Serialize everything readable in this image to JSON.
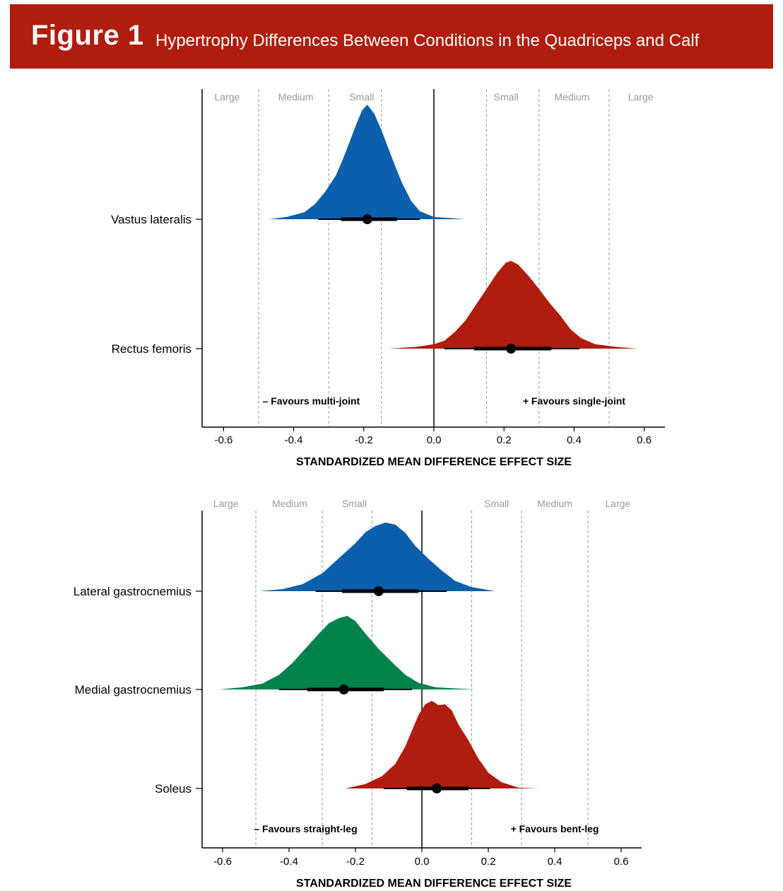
{
  "figure": {
    "label": "Figure 1",
    "title": "Hypertrophy Differences Between Conditions in the Quadriceps and Calf"
  },
  "colors": {
    "banner": "#b01c0e",
    "blue": "#0b5fad",
    "red": "#b01c0e",
    "green": "#00834a",
    "interval": "#000000",
    "threshold_line": "#9a9a9a",
    "zone_label": "#999999"
  },
  "chart_data": [
    {
      "type": "area",
      "subtype": "posterior density (half-eye) with point estimate and interval",
      "xlabel": "STANDARDIZED MEAN DIFFERENCE EFFECT SIZE",
      "xlim": [
        -0.66,
        0.66
      ],
      "xticks": [
        -0.6,
        -0.4,
        -0.2,
        0.0,
        0.2,
        0.4,
        0.6
      ],
      "xtick_labels": [
        "-0.6",
        "-0.4",
        "-0.2",
        "0.0",
        "0.2",
        "0.4",
        "0.6"
      ],
      "zero_line": 0.0,
      "thresholds": [
        -0.5,
        -0.3,
        -0.15,
        0.15,
        0.3,
        0.5
      ],
      "zone_labels": [
        {
          "text": "Large",
          "x": -0.59
        },
        {
          "text": "Medium",
          "x": -0.394
        },
        {
          "text": "Small",
          "x": -0.206
        },
        {
          "text": "Small",
          "x": 0.206
        },
        {
          "text": "Medium",
          "x": 0.394
        },
        {
          "text": "Large",
          "x": 0.59
        }
      ],
      "annotations": {
        "left": "– Favours multi-joint",
        "right": "+ Favours single-joint"
      },
      "series": [
        {
          "name": "Vastus lateralis",
          "color": "blue",
          "point": -0.19,
          "interval_66": [
            -0.265,
            -0.105
          ],
          "interval_95": [
            -0.33,
            -0.04
          ],
          "density": [
            [
              -0.47,
              0
            ],
            [
              -0.42,
              0.02
            ],
            [
              -0.37,
              0.06
            ],
            [
              -0.34,
              0.13
            ],
            [
              -0.31,
              0.24
            ],
            [
              -0.28,
              0.38
            ],
            [
              -0.26,
              0.52
            ],
            [
              -0.24,
              0.68
            ],
            [
              -0.22,
              0.84
            ],
            [
              -0.205,
              0.95
            ],
            [
              -0.19,
              1.0
            ],
            [
              -0.17,
              0.92
            ],
            [
              -0.15,
              0.78
            ],
            [
              -0.13,
              0.62
            ],
            [
              -0.11,
              0.46
            ],
            [
              -0.09,
              0.31
            ],
            [
              -0.065,
              0.16
            ],
            [
              -0.04,
              0.07
            ],
            [
              0.0,
              0.02
            ],
            [
              0.09,
              0
            ]
          ]
        },
        {
          "name": "Rectus femoris",
          "color": "red",
          "point": 0.22,
          "interval_66": [
            0.115,
            0.335
          ],
          "interval_95": [
            0.03,
            0.415
          ],
          "density": [
            [
              -0.13,
              0
            ],
            [
              -0.05,
              0.02
            ],
            [
              0.0,
              0.05
            ],
            [
              0.03,
              0.09
            ],
            [
              0.06,
              0.19
            ],
            [
              0.09,
              0.32
            ],
            [
              0.12,
              0.5
            ],
            [
              0.15,
              0.68
            ],
            [
              0.18,
              0.86
            ],
            [
              0.205,
              0.98
            ],
            [
              0.22,
              1.0
            ],
            [
              0.24,
              0.96
            ],
            [
              0.27,
              0.83
            ],
            [
              0.3,
              0.68
            ],
            [
              0.33,
              0.52
            ],
            [
              0.36,
              0.38
            ],
            [
              0.39,
              0.22
            ],
            [
              0.42,
              0.12
            ],
            [
              0.46,
              0.05
            ],
            [
              0.52,
              0.02
            ],
            [
              0.58,
              0
            ]
          ]
        }
      ]
    },
    {
      "type": "area",
      "subtype": "posterior density (half-eye) with point estimate and interval",
      "xlabel": "STANDARDIZED MEAN DIFFERENCE EFFECT SIZE",
      "xlim": [
        -0.66,
        0.66
      ],
      "xticks": [
        -0.6,
        -0.4,
        -0.2,
        0.0,
        0.2,
        0.4,
        0.6
      ],
      "xtick_labels": [
        "-0.6",
        "-0.4",
        "-0.2",
        "0.0",
        "0.2",
        "0.4",
        "0.6"
      ],
      "zero_line": 0.0,
      "thresholds": [
        -0.5,
        -0.3,
        -0.15,
        0.15,
        0.3,
        0.5
      ],
      "zone_labels": [
        {
          "text": "Large",
          "x": -0.59
        },
        {
          "text": "Medium",
          "x": -0.398
        },
        {
          "text": "Small",
          "x": -0.203
        },
        {
          "text": "Small",
          "x": 0.225
        },
        {
          "text": "Medium",
          "x": 0.4
        },
        {
          "text": "Large",
          "x": 0.59
        }
      ],
      "annotations": {
        "left": "– Favours straight-leg",
        "right": "+ Favours bent-leg"
      },
      "series": [
        {
          "name": "Lateral gastrocnemius",
          "color": "blue",
          "point": -0.13,
          "interval_66": [
            -0.24,
            -0.01
          ],
          "interval_95": [
            -0.32,
            0.075
          ],
          "density": [
            [
              -0.49,
              0
            ],
            [
              -0.42,
              0.03
            ],
            [
              -0.36,
              0.1
            ],
            [
              -0.3,
              0.26
            ],
            [
              -0.25,
              0.48
            ],
            [
              -0.2,
              0.7
            ],
            [
              -0.17,
              0.86
            ],
            [
              -0.14,
              0.95
            ],
            [
              -0.11,
              1.0
            ],
            [
              -0.08,
              0.97
            ],
            [
              -0.05,
              0.85
            ],
            [
              -0.02,
              0.66
            ],
            [
              0.02,
              0.47
            ],
            [
              0.06,
              0.3
            ],
            [
              0.1,
              0.15
            ],
            [
              0.15,
              0.06
            ],
            [
              0.22,
              0
            ]
          ]
        },
        {
          "name": "Medial gastrocnemius",
          "color": "green",
          "point": -0.235,
          "interval_66": [
            -0.345,
            -0.115
          ],
          "interval_95": [
            -0.43,
            -0.03
          ],
          "density": [
            [
              -0.61,
              0
            ],
            [
              -0.54,
              0.03
            ],
            [
              -0.48,
              0.08
            ],
            [
              -0.43,
              0.2
            ],
            [
              -0.39,
              0.36
            ],
            [
              -0.35,
              0.56
            ],
            [
              -0.31,
              0.76
            ],
            [
              -0.28,
              0.9
            ],
            [
              -0.25,
              0.97
            ],
            [
              -0.225,
              1.0
            ],
            [
              -0.2,
              0.93
            ],
            [
              -0.17,
              0.76
            ],
            [
              -0.13,
              0.55
            ],
            [
              -0.09,
              0.37
            ],
            [
              -0.05,
              0.2
            ],
            [
              -0.01,
              0.09
            ],
            [
              0.04,
              0.03
            ],
            [
              0.16,
              0
            ]
          ]
        },
        {
          "name": "Soleus",
          "color": "red",
          "point": 0.045,
          "interval_66": [
            -0.045,
            0.14
          ],
          "interval_95": [
            -0.115,
            0.205
          ],
          "density": [
            [
              -0.23,
              0
            ],
            [
              -0.17,
              0.05
            ],
            [
              -0.12,
              0.14
            ],
            [
              -0.08,
              0.28
            ],
            [
              -0.05,
              0.48
            ],
            [
              -0.03,
              0.66
            ],
            [
              -0.01,
              0.84
            ],
            [
              0.01,
              0.96
            ],
            [
              0.03,
              1.0
            ],
            [
              0.05,
              0.95
            ],
            [
              0.07,
              0.96
            ],
            [
              0.09,
              0.89
            ],
            [
              0.11,
              0.73
            ],
            [
              0.14,
              0.55
            ],
            [
              0.17,
              0.34
            ],
            [
              0.2,
              0.18
            ],
            [
              0.24,
              0.07
            ],
            [
              0.29,
              0.01
            ],
            [
              0.35,
              0
            ]
          ]
        }
      ]
    }
  ]
}
